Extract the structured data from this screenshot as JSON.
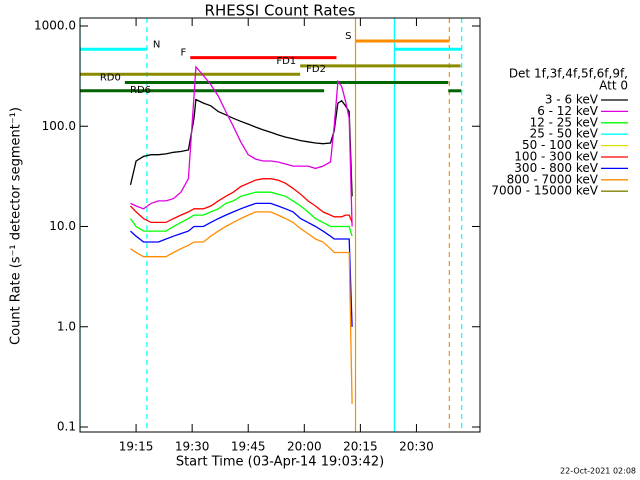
{
  "chart_data": {
    "type": "line",
    "title": "RHESSI Count Rates",
    "xlabel": "Start Time (03-Apr-14 19:03:42)",
    "ylabel": "Count Rate (s⁻¹ detector segment⁻¹)",
    "footer": "22-Oct-2021 02:08",
    "legend_header": [
      "Det 1f,3f,4f,5f,6f,9f,",
      "Att 0"
    ],
    "legend": "right",
    "log_y": true,
    "xlim": [
      0,
      107
    ],
    "ylim": [
      0.1,
      1000
    ],
    "xticks": [
      {
        "value": 15,
        "label": "19:15"
      },
      {
        "value": 30,
        "label": "19:30"
      },
      {
        "value": 45,
        "label": "19:45"
      },
      {
        "value": 60,
        "label": "20:00"
      },
      {
        "value": 75,
        "label": "20:15"
      },
      {
        "value": 90,
        "label": "20:30"
      }
    ],
    "yticks": [
      0.1,
      {
        "value": 1,
        "label": "1.0"
      },
      {
        "value": 10,
        "label": "10.0"
      },
      {
        "value": 100,
        "label": "100.0"
      },
      {
        "value": 1000,
        "label": "1000.0"
      }
    ],
    "x": [
      13.5,
      15,
      17,
      19,
      21,
      23,
      25,
      27,
      29,
      30.5,
      31,
      33,
      35,
      37,
      39,
      41,
      43,
      45,
      47,
      49,
      51,
      53,
      55,
      57,
      59,
      61,
      63,
      65,
      67,
      68,
      69,
      70,
      71,
      72,
      72.8
    ],
    "series": [
      {
        "name": "3 - 6 keV",
        "color": "#000000",
        "values": [
          26,
          45,
          50,
          52,
          52,
          53,
          55,
          56,
          58,
          120,
          185,
          170,
          160,
          140,
          130,
          120,
          112,
          105,
          98,
          92,
          87,
          82,
          78,
          75,
          72,
          70,
          68,
          67,
          68,
          90,
          170,
          180,
          160,
          140,
          20
        ]
      },
      {
        "name": "6 - 12 keV",
        "color": "#e000e0",
        "values": [
          17,
          16,
          15,
          17,
          18,
          18,
          19,
          22,
          30,
          200,
          390,
          320,
          260,
          200,
          140,
          100,
          70,
          52,
          47,
          45,
          45,
          44,
          42,
          40,
          40,
          40,
          38,
          40,
          44,
          100,
          280,
          250,
          180,
          120,
          10
        ]
      },
      {
        "name": "12 - 25 keV",
        "color": "#00ff00",
        "values": [
          12,
          10,
          9,
          9,
          9,
          9,
          10,
          11,
          12,
          13,
          13,
          13,
          14,
          15,
          17,
          18,
          20,
          21,
          22,
          22,
          22,
          21,
          20,
          18,
          16,
          14,
          12,
          11,
          10,
          10,
          10,
          10,
          10,
          10,
          8
        ]
      },
      {
        "name": "25 - 50 keV",
        "color": "#00ffff",
        "values": [
          null,
          null,
          null,
          null,
          null,
          null,
          null,
          null,
          null,
          null,
          null,
          null,
          null,
          null,
          null,
          null,
          null,
          null,
          null,
          null,
          null,
          null,
          null,
          null,
          null,
          null,
          null,
          null,
          null,
          null,
          null,
          null,
          null,
          null,
          null
        ]
      },
      {
        "name": "50 - 100 keV",
        "color": "#e0e000",
        "values": [
          null,
          null,
          null,
          null,
          null,
          null,
          null,
          null,
          null,
          null,
          null,
          null,
          null,
          null,
          null,
          null,
          null,
          null,
          null,
          null,
          null,
          null,
          null,
          null,
          null,
          null,
          null,
          null,
          null,
          null,
          null,
          null,
          null,
          null,
          null
        ]
      },
      {
        "name": "100 - 300 keV",
        "color": "#ff0000",
        "values": [
          16,
          14,
          12,
          11,
          11,
          11,
          12,
          13,
          14,
          15,
          15,
          15,
          16,
          18,
          20,
          22,
          25,
          27,
          29,
          30,
          30,
          29,
          27,
          24,
          21,
          18,
          16,
          14,
          13,
          12.5,
          12.5,
          12.5,
          13,
          13,
          11
        ]
      },
      {
        "name": "300 - 800 keV",
        "color": "#0000ff",
        "values": [
          9,
          8,
          7,
          7,
          7,
          7.5,
          8,
          8.5,
          9,
          10,
          10,
          10,
          11,
          12,
          13,
          14,
          15,
          16,
          17,
          17,
          17,
          16,
          15,
          14,
          12,
          11,
          10,
          9,
          8,
          7.5,
          7.5,
          7.5,
          7.5,
          7.5,
          1
        ]
      },
      {
        "name": "800 - 7000 keV",
        "color": "#ff8c00",
        "values": [
          6,
          5.5,
          5,
          5,
          5,
          5,
          5.5,
          6,
          6.5,
          7,
          7,
          7,
          8,
          9,
          10,
          11,
          12,
          13,
          14,
          14,
          14,
          13,
          12,
          11,
          9.5,
          8.5,
          7.5,
          7,
          6,
          5.5,
          5.5,
          5.5,
          5.5,
          5.5,
          0.17
        ]
      },
      {
        "name": "7000 - 15000 keV",
        "color": "#808000",
        "values": [
          null,
          null,
          null,
          null,
          null,
          null,
          null,
          null,
          null,
          null,
          null,
          null,
          null,
          null,
          null,
          null,
          null,
          null,
          null,
          null,
          null,
          null,
          null,
          null,
          null,
          null,
          null,
          null,
          null,
          null,
          null,
          null,
          null,
          null,
          null
        ]
      }
    ],
    "markers": [
      {
        "x": 0,
        "color": "#00ffff",
        "dashed": false
      },
      {
        "x": 17.9,
        "color": "#00ffff",
        "dashed": true
      },
      {
        "x": 73.7,
        "color": "#ff8c00",
        "dashed": false
      },
      {
        "x": 84.1,
        "color": "#00ffff",
        "dashed": false
      },
      {
        "x": 98.8,
        "color": "#ff8c00",
        "dashed": true
      },
      {
        "x": 102.1,
        "color": "#00ffff",
        "dashed": true
      }
    ],
    "flags": [
      {
        "label": "S",
        "color": "#ff8c00",
        "segments": [
          [
            73.7,
            98.8
          ]
        ]
      },
      {
        "label": "N",
        "color": "#00ffff",
        "segments": [
          [
            0,
            17.9
          ],
          [
            84.1,
            102.1
          ]
        ]
      },
      {
        "label": "F",
        "color": "#ff0000",
        "segments": [
          [
            29.5,
            68.6
          ]
        ]
      },
      {
        "label": "FD1",
        "color": "#8b8b00",
        "segments": [
          [
            58.9,
            101.8
          ]
        ]
      },
      {
        "label": "FD2",
        "color": "#8b8b00",
        "segments": [
          [
            0,
            58.9
          ]
        ]
      },
      {
        "label": "RD0",
        "color": "#006400",
        "segments": [
          [
            12,
            98.5
          ]
        ]
      },
      {
        "label": "RD6",
        "color": "#006400",
        "segments": [
          [
            0,
            65.3
          ],
          [
            98.5,
            102
          ]
        ]
      }
    ]
  }
}
